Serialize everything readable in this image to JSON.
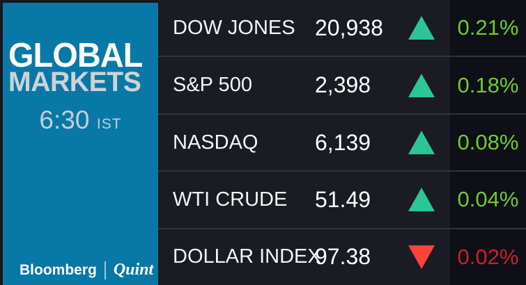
{
  "brand": {
    "title_line1": "GLOBAL",
    "title_line2": "MARKETS",
    "time": "6:30",
    "time_zone": "IST",
    "logo_left": "Bloomberg",
    "logo_right": "Quint"
  },
  "colors": {
    "background": "#16171F",
    "panel_blue": "#0879A6",
    "row_background": "#1A1B23",
    "percent_column_background": "#0E0F17",
    "separator": "#33343C",
    "up_triangle": "#2BC695",
    "down_triangle": "#FB4337",
    "percent_up_text": "#72C92F",
    "percent_down_text": "#CE1F2B"
  },
  "chart_data": {
    "type": "table",
    "title": "GLOBAL MARKETS",
    "timestamp": "6:30 IST",
    "columns": [
      "instrument",
      "last_value",
      "direction",
      "change_percent"
    ],
    "rows": [
      {
        "label": "DOW JONES",
        "value": "20,938",
        "direction": "up",
        "change": "0.21%"
      },
      {
        "label": "S&P 500",
        "value": "2,398",
        "direction": "up",
        "change": "0.18%"
      },
      {
        "label": "NASDAQ",
        "value": "6,139",
        "direction": "up",
        "change": "0.08%"
      },
      {
        "label": "WTI CRUDE",
        "value": "51.49",
        "direction": "up",
        "change": "0.04%"
      },
      {
        "label": "DOLLAR INDEX",
        "value": "97.38",
        "direction": "down",
        "change": "0.02%"
      }
    ]
  }
}
